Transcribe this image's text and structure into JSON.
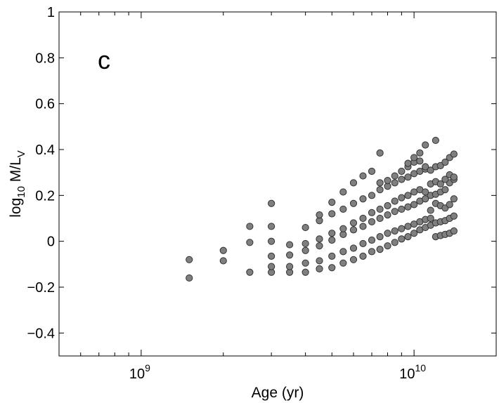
{
  "chart_data": {
    "type": "scatter",
    "panel_label": "c",
    "xlabel": "Age (yr)",
    "ylabel": {
      "base": "log",
      "sub1": "10",
      "mid": " M/L",
      "sub2": "V"
    },
    "xscale": "log",
    "xlim": [
      500000000,
      20000000000
    ],
    "ylim": [
      -0.5,
      1
    ],
    "x_tick_labels": [
      {
        "value": 1000000000,
        "base": "10",
        "exp": "9"
      },
      {
        "value": 10000000000,
        "base": "10",
        "exp": "10"
      }
    ],
    "y_ticks": [
      -0.4,
      -0.2,
      0,
      0.2,
      0.4,
      0.6,
      0.8,
      1
    ],
    "y_tick_labels": [
      "−0.4",
      "−0.2",
      "0",
      "0.2",
      "0.4",
      "0.6",
      "0.8",
      "1"
    ],
    "grid": false,
    "marker_color": "#7f7f7f",
    "marker_edge": "#333333",
    "series": [
      {
        "x": [
          1500000000,
          2000000000,
          2500000000,
          3000000000,
          3500000000,
          4000000000,
          4500000000,
          5000000000,
          5500000000,
          6000000000,
          6500000000,
          7000000000,
          7500000000,
          8000000000,
          8500000000,
          9000000000,
          9500000000,
          10000000000,
          10500000000,
          11000000000,
          11500000000,
          12000000000,
          12500000000,
          13000000000,
          13500000000,
          14000000000
        ],
        "y": [
          -0.16,
          -0.085,
          -0.135,
          -0.135,
          -0.135,
          -0.135,
          -0.12,
          -0.115,
          -0.095,
          -0.08,
          -0.065,
          -0.045,
          -0.035,
          -0.02,
          -0.005,
          0.01,
          0.02,
          0.035,
          0.05,
          0.06,
          0.07,
          0.02,
          0.025,
          0.03,
          0.035,
          0.045
        ]
      },
      {
        "x": [
          3000000000,
          3500000000,
          4000000000,
          4500000000,
          5000000000,
          5500000000,
          6000000000,
          6500000000,
          7000000000,
          7500000000,
          8000000000,
          8500000000,
          9000000000,
          9500000000,
          10000000000,
          10500000000,
          11000000000,
          11500000000,
          12000000000,
          12500000000,
          13000000000,
          13500000000,
          14000000000
        ],
        "y": [
          -0.11,
          -0.11,
          -0.095,
          -0.085,
          -0.065,
          -0.045,
          -0.03,
          -0.01,
          0.005,
          0.02,
          0.035,
          0.045,
          0.055,
          0.065,
          0.075,
          0.085,
          0.095,
          0.1,
          0.08,
          0.085,
          0.09,
          0.1,
          0.11
        ]
      },
      {
        "x": [
          3000000000,
          3500000000,
          4000000000,
          4500000000,
          5000000000,
          5500000000,
          6000000000,
          6500000000,
          7000000000,
          7500000000,
          8000000000,
          8500000000,
          9000000000,
          9500000000,
          10000000000,
          10500000000,
          11000000000,
          11500000000,
          12000000000,
          12500000000,
          13000000000,
          13500000000,
          14000000000
        ],
        "y": [
          -0.065,
          -0.06,
          -0.04,
          -0.02,
          0.005,
          0.03,
          0.05,
          0.065,
          0.085,
          0.1,
          0.115,
          0.13,
          0.14,
          0.15,
          0.16,
          0.175,
          0.185,
          0.135,
          0.165,
          0.155,
          0.145,
          0.16,
          0.185
        ]
      },
      {
        "x": [
          2500000000,
          3000000000,
          3500000000,
          4000000000,
          4500000000,
          5000000000,
          5500000000,
          6000000000,
          6500000000,
          7000000000,
          7500000000,
          8000000000,
          8500000000,
          9000000000,
          9500000000,
          10000000000,
          10500000000,
          11000000000,
          11500000000,
          12000000000,
          12500000000,
          13000000000,
          13500000000,
          14000000000
        ],
        "y": [
          -0.005,
          0.0,
          -0.015,
          -0.01,
          0.01,
          0.035,
          0.055,
          0.08,
          0.1,
          0.125,
          0.14,
          0.155,
          0.175,
          0.19,
          0.2,
          0.215,
          0.225,
          0.215,
          0.2,
          0.205,
          0.215,
          0.225,
          0.255,
          0.27
        ]
      },
      {
        "x": [
          2500000000,
          3000000000,
          4000000000,
          4500000000,
          5000000000,
          5500000000,
          6000000000,
          6500000000,
          7000000000,
          7500000000,
          8000000000,
          8500000000,
          9000000000,
          9500000000,
          10000000000,
          10500000000,
          11000000000,
          11500000000,
          12000000000,
          12500000000,
          13000000000,
          13500000000,
          14000000000
        ],
        "y": [
          0.065,
          0.065,
          0.06,
          0.09,
          0.12,
          0.14,
          0.165,
          0.185,
          0.2,
          0.225,
          0.24,
          0.255,
          0.27,
          0.28,
          0.295,
          0.305,
          0.315,
          0.25,
          0.26,
          0.25,
          0.27,
          0.29,
          0.28
        ]
      },
      {
        "x": [
          1500000000,
          2000000000,
          3000000000,
          4500000000,
          5000000000,
          5500000000,
          6000000000,
          6500000000,
          7000000000,
          7500000000,
          8000000000,
          8500000000,
          9000000000,
          9500000000,
          10000000000,
          10500000000,
          11000000000,
          11500000000,
          12000000000,
          12500000000,
          13000000000,
          13500000000,
          14000000000
        ],
        "y": [
          -0.08,
          -0.04,
          0.165,
          0.115,
          0.17,
          0.215,
          0.255,
          0.285,
          0.305,
          0.255,
          0.265,
          0.285,
          0.305,
          0.325,
          0.345,
          0.35,
          0.325,
          0.31,
          0.325,
          0.33,
          0.345,
          0.365,
          0.38
        ]
      },
      {
        "x": [
          7500000000,
          9500000000,
          10000000000,
          10500000000,
          11000000000,
          12000000000
        ],
        "y": [
          0.385,
          0.34,
          0.365,
          0.385,
          0.42,
          0.44
        ]
      }
    ]
  }
}
